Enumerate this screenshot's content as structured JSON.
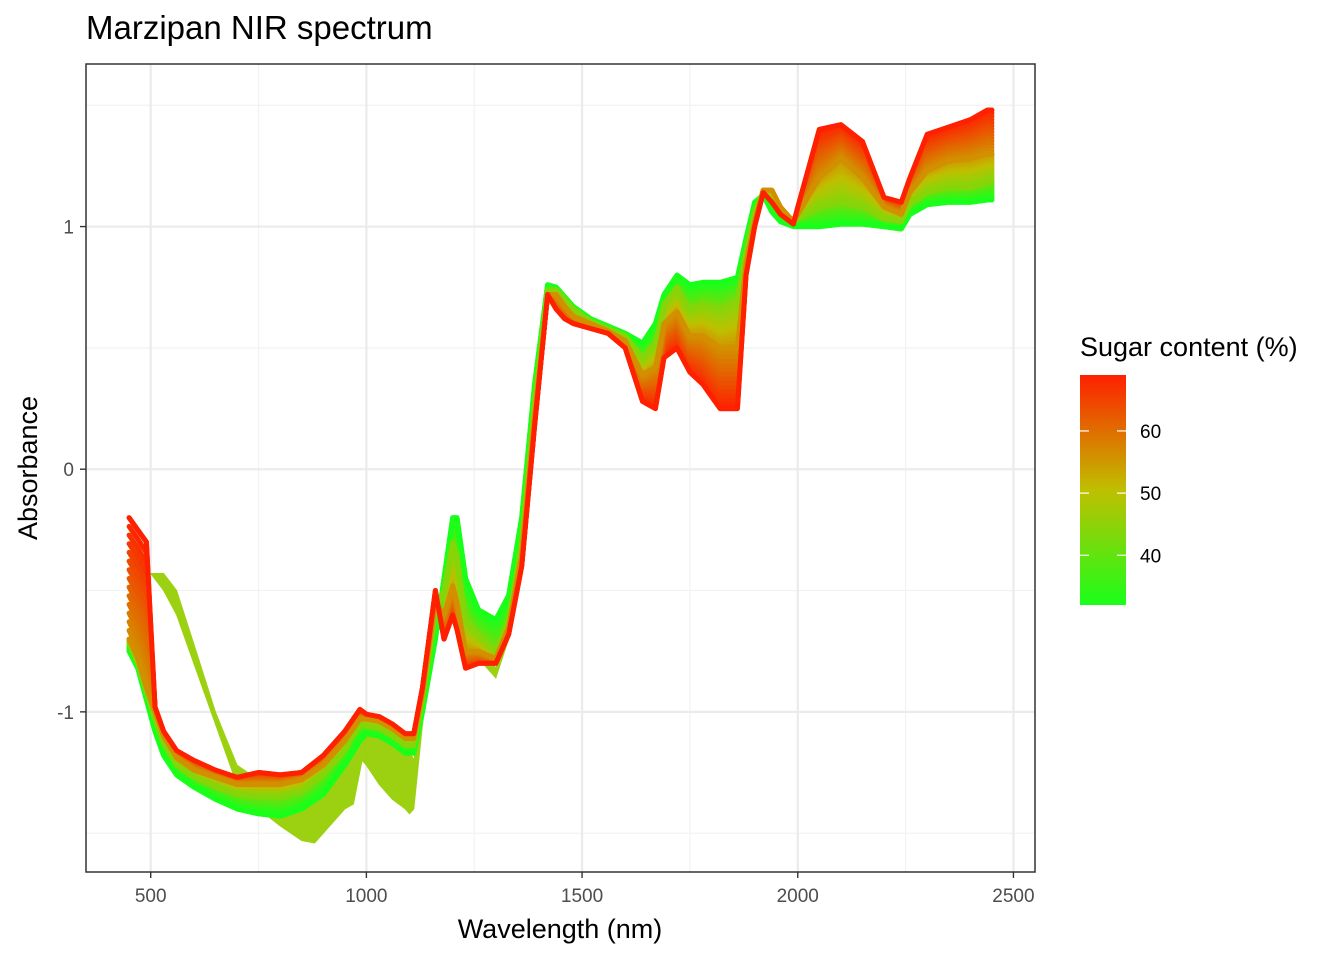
{
  "chart_data": {
    "type": "line",
    "title": "Marzipan NIR spectrum",
    "xlabel": "Wavelength (nm)",
    "ylabel": "Absorbance",
    "xlim": [
      350,
      2550
    ],
    "ylim": [
      -1.66,
      1.67
    ],
    "x_ticks": [
      500,
      1000,
      1500,
      2000,
      2500
    ],
    "y_ticks": [
      -1,
      0,
      1
    ],
    "grid": true,
    "legend": {
      "title": "Sugar content (%)",
      "placement": "right",
      "range": [
        32,
        69
      ],
      "ticks": [
        40,
        50,
        60
      ],
      "colors": {
        "low": "#1aff1a",
        "mid": "#bfbf00",
        "high": "#ff2000"
      }
    },
    "series": [
      {
        "sugar": 32,
        "x": [
          450,
          470,
          490,
          510,
          530,
          560,
          600,
          650,
          700,
          750,
          800,
          850,
          900,
          950,
          985,
          1000,
          1030,
          1060,
          1090,
          1110,
          1130,
          1160,
          1180,
          1200,
          1210,
          1230,
          1260,
          1300,
          1330,
          1360,
          1390,
          1420,
          1440,
          1460,
          1480,
          1520,
          1560,
          1600,
          1640,
          1670,
          1690,
          1720,
          1750,
          1780,
          1820,
          1860,
          1880,
          1900,
          1920,
          1940,
          1960,
          1990,
          2000,
          2050,
          2100,
          2150,
          2200,
          2240,
          2260,
          2300,
          2350,
          2400,
          2440,
          2450
        ],
        "y": [
          -0.75,
          -0.82,
          -0.95,
          -1.08,
          -1.18,
          -1.26,
          -1.31,
          -1.36,
          -1.4,
          -1.42,
          -1.43,
          -1.4,
          -1.34,
          -1.22,
          -1.12,
          -1.09,
          -1.1,
          -1.13,
          -1.17,
          -1.17,
          -1.0,
          -0.7,
          -0.45,
          -0.2,
          -0.2,
          -0.45,
          -0.58,
          -0.62,
          -0.52,
          -0.2,
          0.35,
          0.76,
          0.75,
          0.71,
          0.67,
          0.62,
          0.59,
          0.56,
          0.52,
          0.6,
          0.72,
          0.8,
          0.76,
          0.77,
          0.77,
          0.79,
          0.95,
          1.1,
          1.13,
          1.06,
          1.02,
          1.0,
          1.0,
          1.0,
          1.01,
          1.01,
          1.0,
          0.99,
          1.05,
          1.09,
          1.1,
          1.1,
          1.11,
          1.11
        ]
      },
      {
        "sugar": 44,
        "x": [
          450,
          470,
          490,
          510,
          530,
          560,
          600,
          650,
          700,
          750,
          800,
          850,
          900,
          950,
          985,
          1000,
          1030,
          1060,
          1090,
          1110,
          1130,
          1160,
          1180,
          1200,
          1210,
          1230,
          1260,
          1300,
          1330,
          1360,
          1390,
          1420,
          1440,
          1460,
          1480,
          1520,
          1560,
          1600,
          1640,
          1670,
          1690,
          1720,
          1750,
          1780,
          1820,
          1860,
          1880,
          1900,
          1920,
          1940,
          1960,
          1990,
          2000,
          2050,
          2100,
          2150,
          2200,
          2240,
          2260,
          2300,
          2350,
          2400,
          2440,
          2450
        ],
        "y": [
          -0.72,
          -0.8,
          -0.92,
          -1.03,
          -1.13,
          -1.22,
          -1.27,
          -1.31,
          -1.34,
          -1.35,
          -1.35,
          -1.33,
          -1.26,
          -1.16,
          -1.05,
          -1.06,
          -1.07,
          -1.1,
          -1.14,
          -1.14,
          -0.95,
          -0.6,
          -0.5,
          -0.3,
          -0.35,
          -0.62,
          -0.68,
          -0.75,
          -0.62,
          -0.3,
          0.28,
          0.74,
          0.74,
          0.7,
          0.66,
          0.61,
          0.58,
          0.55,
          0.46,
          0.52,
          0.68,
          0.75,
          0.66,
          0.68,
          0.66,
          0.7,
          0.9,
          1.06,
          1.14,
          1.1,
          1.05,
          1.02,
          1.03,
          1.08,
          1.1,
          1.08,
          1.03,
          1.02,
          1.09,
          1.14,
          1.16,
          1.16,
          1.18,
          1.19
        ]
      },
      {
        "sugar": 56,
        "x": [
          450,
          470,
          490,
          510,
          530,
          560,
          600,
          650,
          700,
          750,
          800,
          850,
          900,
          950,
          985,
          1000,
          1030,
          1060,
          1090,
          1110,
          1130,
          1160,
          1180,
          1200,
          1210,
          1230,
          1260,
          1300,
          1330,
          1360,
          1390,
          1420,
          1440,
          1460,
          1480,
          1520,
          1560,
          1600,
          1640,
          1670,
          1690,
          1720,
          1750,
          1780,
          1820,
          1860,
          1880,
          1900,
          1920,
          1940,
          1960,
          1990,
          2000,
          2050,
          2100,
          2150,
          2200,
          2240,
          2260,
          2300,
          2350,
          2400,
          2440,
          2450
        ],
        "y": [
          -0.7,
          -0.78,
          -0.9,
          -1.0,
          -1.1,
          -1.19,
          -1.24,
          -1.27,
          -1.3,
          -1.3,
          -1.3,
          -1.28,
          -1.22,
          -1.12,
          -1.03,
          -1.03,
          -1.04,
          -1.07,
          -1.11,
          -1.11,
          -0.92,
          -0.55,
          -0.6,
          -0.48,
          -0.55,
          -0.75,
          -0.75,
          -0.78,
          -0.65,
          -0.35,
          0.22,
          0.72,
          0.72,
          0.67,
          0.63,
          0.6,
          0.57,
          0.53,
          0.39,
          0.42,
          0.6,
          0.65,
          0.55,
          0.55,
          0.5,
          0.5,
          0.85,
          1.02,
          1.15,
          1.15,
          1.08,
          1.02,
          1.05,
          1.2,
          1.28,
          1.2,
          1.08,
          1.05,
          1.14,
          1.23,
          1.27,
          1.28,
          1.3,
          1.3
        ]
      },
      {
        "sugar": 69,
        "x": [
          450,
          470,
          490,
          510,
          530,
          560,
          600,
          650,
          700,
          750,
          800,
          850,
          900,
          950,
          985,
          1000,
          1030,
          1060,
          1090,
          1110,
          1130,
          1160,
          1180,
          1200,
          1210,
          1230,
          1260,
          1300,
          1330,
          1360,
          1390,
          1420,
          1440,
          1460,
          1480,
          1520,
          1560,
          1600,
          1640,
          1670,
          1690,
          1720,
          1750,
          1780,
          1820,
          1860,
          1880,
          1900,
          1920,
          1940,
          1960,
          1990,
          2000,
          2050,
          2100,
          2150,
          2200,
          2240,
          2260,
          2300,
          2350,
          2400,
          2440,
          2450
        ],
        "y": [
          -0.2,
          -0.25,
          -0.3,
          -0.98,
          -1.08,
          -1.16,
          -1.2,
          -1.24,
          -1.27,
          -1.25,
          -1.26,
          -1.25,
          -1.18,
          -1.08,
          -0.99,
          -1.01,
          -1.02,
          -1.05,
          -1.09,
          -1.09,
          -0.9,
          -0.5,
          -0.7,
          -0.6,
          -0.66,
          -0.82,
          -0.8,
          -0.8,
          -0.68,
          -0.4,
          0.18,
          0.72,
          0.66,
          0.62,
          0.6,
          0.58,
          0.56,
          0.5,
          0.28,
          0.25,
          0.46,
          0.5,
          0.4,
          0.35,
          0.25,
          0.25,
          0.8,
          1.0,
          1.14,
          1.1,
          1.05,
          1.01,
          1.08,
          1.4,
          1.42,
          1.35,
          1.12,
          1.1,
          1.2,
          1.38,
          1.41,
          1.44,
          1.48,
          1.48
        ]
      }
    ],
    "low_sugar_band_series": {
      "sugar": 46,
      "x": [
        500,
        530,
        560,
        600,
        650,
        700,
        750,
        800,
        850,
        880,
        900,
        950,
        970,
        990,
        1000,
        1030,
        1060,
        1090,
        1100,
        1110,
        1130,
        1160,
        1180,
        1200,
        1230,
        1260,
        1300,
        1330
      ],
      "y_upper": [
        -0.43,
        -0.43,
        -0.5,
        -0.72,
        -1.0,
        -1.22,
        -1.28,
        -1.3,
        -1.29,
        -1.25,
        -1.2,
        -1.14,
        -1.05,
        -1.02,
        -1.03,
        -1.07,
        -1.12,
        -1.16,
        -1.16,
        -1.2,
        -0.95,
        -0.62,
        -0.5,
        -0.33,
        -0.62,
        -0.7,
        -0.82,
        -0.66
      ],
      "y_lower": [
        -0.43,
        -0.5,
        -0.6,
        -0.8,
        -1.05,
        -1.3,
        -1.4,
        -1.47,
        -1.53,
        -1.54,
        -1.5,
        -1.4,
        -1.38,
        -1.2,
        -1.22,
        -1.3,
        -1.36,
        -1.4,
        -1.42,
        -1.4,
        -1.05,
        -0.65,
        -0.55,
        -0.48,
        -0.7,
        -0.78,
        -0.86,
        -0.7
      ]
    }
  }
}
